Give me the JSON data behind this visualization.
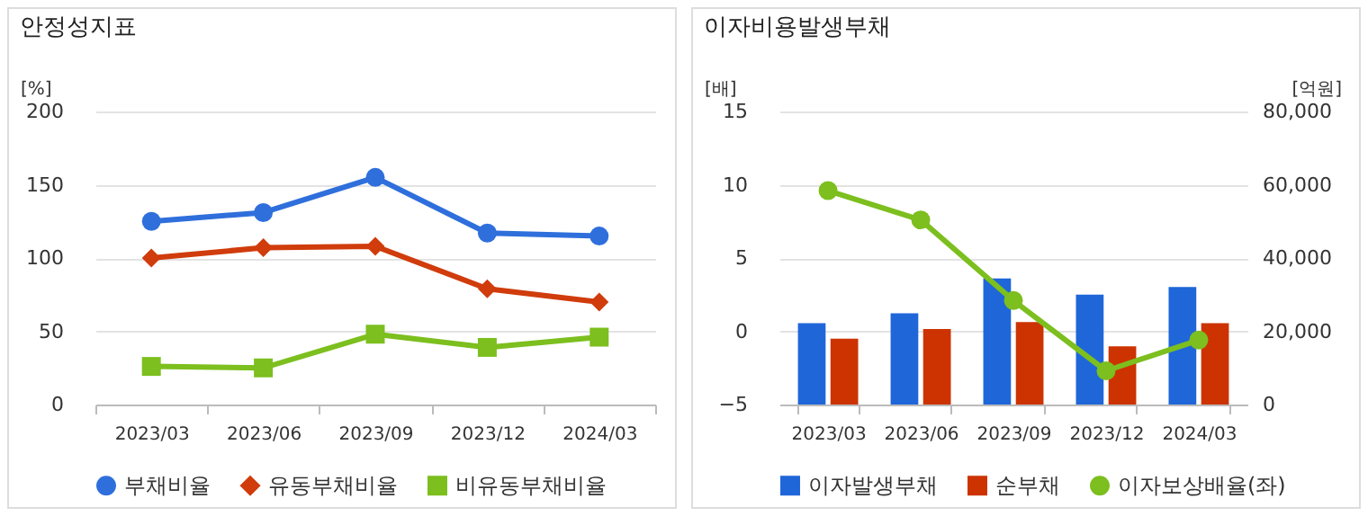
{
  "chart_data": [
    {
      "type": "line",
      "title": "안정성지표",
      "ylabel": "[%]",
      "categories": [
        "2023/03",
        "2023/06",
        "2023/09",
        "2023/12",
        "2024/03"
      ],
      "ylim": [
        0,
        200
      ],
      "yticks": [
        0,
        50,
        100,
        150,
        200
      ],
      "grid": "y",
      "legend": "bottom",
      "series": [
        {
          "name": "부채비율",
          "color": "#2f6fdc",
          "marker": "circle",
          "values": [
            125,
            131,
            155,
            117,
            115
          ]
        },
        {
          "name": "유동부채비율",
          "color": "#d03c0c",
          "marker": "diamond",
          "values": [
            100,
            107,
            108,
            79,
            70
          ]
        },
        {
          "name": "비유동부채비율",
          "color": "#7cbf1e",
          "marker": "square",
          "values": [
            26,
            25,
            48,
            39,
            46
          ]
        }
      ]
    },
    {
      "type": "bar",
      "title": "이자비용발생부채",
      "ylabel": "[배]",
      "y2label": "[억원]",
      "categories": [
        "2023/03",
        "2023/06",
        "2023/09",
        "2023/12",
        "2024/03"
      ],
      "ylim": [
        -5,
        15
      ],
      "yticks": [
        -5,
        0,
        5,
        10,
        15
      ],
      "y2lim": [
        0,
        80000
      ],
      "y2ticks": [
        {
          "value": 0,
          "label": "0"
        },
        {
          "value": 20000,
          "label": "20,000"
        },
        {
          "value": 40000,
          "label": "40,000"
        },
        {
          "value": 60000,
          "label": "60,000"
        },
        {
          "value": 80000,
          "label": "80,000"
        }
      ],
      "grid": "y",
      "legend": "bottom",
      "series": [
        {
          "name": "이자발생부채",
          "color": "#1f66d9",
          "axis": "y2",
          "values": [
            22200,
            24900,
            34400,
            30000,
            32100
          ]
        },
        {
          "name": "순부채",
          "color": "#cc3300",
          "axis": "y2",
          "values": [
            18000,
            20600,
            22500,
            15900,
            22200
          ]
        },
        {
          "name": "이자보상배율(좌)",
          "type": "line",
          "color": "#7cbf1e",
          "marker": "circle",
          "axis": "y",
          "values": [
            9.6,
            7.6,
            2.1,
            -2.7,
            -0.6
          ]
        }
      ]
    }
  ]
}
